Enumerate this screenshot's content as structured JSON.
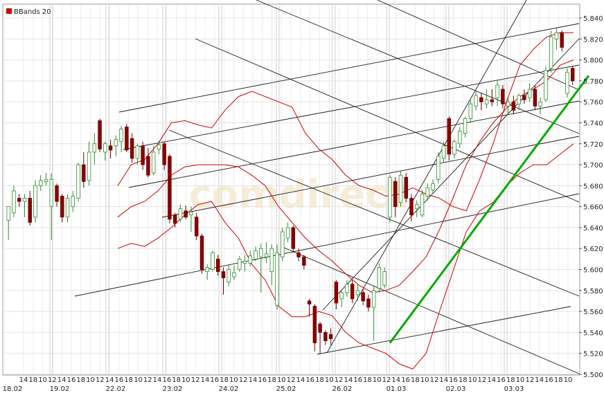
{
  "legend": {
    "label": "BBands 20",
    "swatch_color": "#cc0000"
  },
  "watermark": "comdirect",
  "chart_data": {
    "type": "candlestick",
    "indicator": "BBands 20",
    "ylim": [
      5.5,
      5.84
    ],
    "y_tick_labels": [
      "5.840",
      "5.820",
      "5.800",
      "5.780",
      "5.760",
      "5.740",
      "5.720",
      "5.700",
      "5.680",
      "5.660",
      "5.640",
      "5.620",
      "5.600",
      "5.580",
      "5.560",
      "5.540",
      "5.520",
      "5.500"
    ],
    "x_hour_labels": [
      "14",
      "18",
      "10",
      "12",
      "14",
      "16",
      "18",
      "10",
      "12",
      "14",
      "16",
      "18",
      "10",
      "12",
      "14",
      "16",
      "18",
      "10",
      "12",
      "14",
      "16",
      "18",
      "10",
      "12",
      "14",
      "16",
      "18",
      "10",
      "12",
      "14",
      "16",
      "18",
      "10",
      "12",
      "14",
      "16",
      "18",
      "10",
      "12",
      "14",
      "16",
      "18",
      "10",
      "12",
      "14",
      "16",
      "18",
      "10",
      "12",
      "14",
      "16",
      "18",
      "10",
      "12",
      "14",
      "16",
      "18",
      "10"
    ],
    "x_date_labels": [
      "18.02",
      "19.02",
      "22.02",
      "23.02",
      "24.02",
      "25.02",
      "26.02",
      "01.03",
      "02.03",
      "03.03"
    ],
    "grid": true,
    "colors": {
      "up": "#00aa00",
      "down": "#8b0000",
      "bands": "#cc0000",
      "trend": "#00aa00",
      "lines": "#000000"
    },
    "candles": [
      {
        "o": 5.647,
        "h": 5.66,
        "l": 5.628,
        "c": 5.66
      },
      {
        "o": 5.654,
        "h": 5.68,
        "l": 5.65,
        "c": 5.675
      },
      {
        "o": 5.668,
        "h": 5.672,
        "l": 5.66,
        "c": 5.665
      },
      {
        "o": 5.665,
        "h": 5.672,
        "l": 5.65,
        "c": 5.668
      },
      {
        "o": 5.668,
        "h": 5.675,
        "l": 5.642,
        "c": 5.645
      },
      {
        "o": 5.65,
        "h": 5.685,
        "l": 5.645,
        "c": 5.68
      },
      {
        "o": 5.68,
        "h": 5.69,
        "l": 5.675,
        "c": 5.685
      },
      {
        "o": 5.684,
        "h": 5.692,
        "l": 5.68,
        "c": 5.686
      },
      {
        "o": 5.66,
        "h": 5.692,
        "l": 5.628,
        "c": 5.686
      },
      {
        "o": 5.68,
        "h": 5.682,
        "l": 5.66,
        "c": 5.665
      },
      {
        "o": 5.67,
        "h": 5.672,
        "l": 5.645,
        "c": 5.65
      },
      {
        "o": 5.65,
        "h": 5.672,
        "l": 5.645,
        "c": 5.668
      },
      {
        "o": 5.66,
        "h": 5.675,
        "l": 5.655,
        "c": 5.67
      },
      {
        "o": 5.668,
        "h": 5.702,
        "l": 5.665,
        "c": 5.7
      },
      {
        "o": 5.7,
        "h": 5.712,
        "l": 5.678,
        "c": 5.684
      },
      {
        "o": 5.685,
        "h": 5.722,
        "l": 5.68,
        "c": 5.712
      },
      {
        "o": 5.712,
        "h": 5.73,
        "l": 5.7,
        "c": 5.72
      },
      {
        "o": 5.742,
        "h": 5.744,
        "l": 5.712,
        "c": 5.715
      },
      {
        "o": 5.712,
        "h": 5.722,
        "l": 5.704,
        "c": 5.72
      },
      {
        "o": 5.718,
        "h": 5.724,
        "l": 5.706,
        "c": 5.714
      },
      {
        "o": 5.718,
        "h": 5.728,
        "l": 5.708,
        "c": 5.724
      },
      {
        "o": 5.722,
        "h": 5.737,
        "l": 5.712,
        "c": 5.734
      },
      {
        "o": 5.736,
        "h": 5.739,
        "l": 5.712,
        "c": 5.714
      },
      {
        "o": 5.725,
        "h": 5.73,
        "l": 5.702,
        "c": 5.706
      },
      {
        "o": 5.706,
        "h": 5.72,
        "l": 5.7,
        "c": 5.718
      },
      {
        "o": 5.718,
        "h": 5.722,
        "l": 5.695,
        "c": 5.7
      },
      {
        "o": 5.708,
        "h": 5.716,
        "l": 5.688,
        "c": 5.69
      },
      {
        "o": 5.692,
        "h": 5.718,
        "l": 5.69,
        "c": 5.712
      },
      {
        "o": 5.715,
        "h": 5.723,
        "l": 5.71,
        "c": 5.719
      },
      {
        "o": 5.72,
        "h": 5.722,
        "l": 5.695,
        "c": 5.7
      },
      {
        "o": 5.708,
        "h": 5.71,
        "l": 5.644,
        "c": 5.648
      },
      {
        "o": 5.652,
        "h": 5.654,
        "l": 5.64,
        "c": 5.644
      },
      {
        "o": 5.648,
        "h": 5.662,
        "l": 5.645,
        "c": 5.658
      },
      {
        "o": 5.656,
        "h": 5.661,
        "l": 5.648,
        "c": 5.65
      },
      {
        "o": 5.652,
        "h": 5.66,
        "l": 5.636,
        "c": 5.655
      },
      {
        "o": 5.65,
        "h": 5.654,
        "l": 5.628,
        "c": 5.632
      },
      {
        "o": 5.632,
        "h": 5.634,
        "l": 5.596,
        "c": 5.6
      },
      {
        "o": 5.598,
        "h": 5.605,
        "l": 5.59,
        "c": 5.602
      },
      {
        "o": 5.6,
        "h": 5.618,
        "l": 5.598,
        "c": 5.616
      },
      {
        "o": 5.61,
        "h": 5.614,
        "l": 5.594,
        "c": 5.598
      },
      {
        "o": 5.598,
        "h": 5.602,
        "l": 5.576,
        "c": 5.592
      },
      {
        "o": 5.588,
        "h": 5.604,
        "l": 5.584,
        "c": 5.6
      },
      {
        "o": 5.593,
        "h": 5.604,
        "l": 5.59,
        "c": 5.597
      },
      {
        "o": 5.6,
        "h": 5.613,
        "l": 5.598,
        "c": 5.61
      },
      {
        "o": 5.606,
        "h": 5.614,
        "l": 5.598,
        "c": 5.608
      },
      {
        "o": 5.606,
        "h": 5.618,
        "l": 5.603,
        "c": 5.613
      },
      {
        "o": 5.61,
        "h": 5.622,
        "l": 5.608,
        "c": 5.618
      },
      {
        "o": 5.612,
        "h": 5.625,
        "l": 5.578,
        "c": 5.62
      },
      {
        "o": 5.612,
        "h": 5.626,
        "l": 5.606,
        "c": 5.615
      },
      {
        "o": 5.598,
        "h": 5.624,
        "l": 5.585,
        "c": 5.62
      },
      {
        "o": 5.566,
        "h": 5.624,
        "l": 5.562,
        "c": 5.616
      },
      {
        "o": 5.612,
        "h": 5.64,
        "l": 5.608,
        "c": 5.636
      },
      {
        "o": 5.63,
        "h": 5.645,
        "l": 5.626,
        "c": 5.64
      },
      {
        "o": 5.64,
        "h": 5.642,
        "l": 5.616,
        "c": 5.62
      },
      {
        "o": 5.616,
        "h": 5.62,
        "l": 5.608,
        "c": 5.612
      },
      {
        "o": 5.612,
        "h": 5.614,
        "l": 5.6,
        "c": 5.604
      },
      {
        "o": 5.57,
        "h": 5.572,
        "l": 5.555,
        "c": 5.567
      },
      {
        "o": 5.565,
        "h": 5.567,
        "l": 5.522,
        "c": 5.53
      },
      {
        "o": 5.548,
        "h": 5.55,
        "l": 5.52,
        "c": 5.54
      },
      {
        "o": 5.54,
        "h": 5.542,
        "l": 5.528,
        "c": 5.532
      },
      {
        "o": 5.538,
        "h": 5.544,
        "l": 5.528,
        "c": 5.534
      },
      {
        "o": 5.588,
        "h": 5.59,
        "l": 5.562,
        "c": 5.568
      },
      {
        "o": 5.572,
        "h": 5.58,
        "l": 5.564,
        "c": 5.578
      },
      {
        "o": 5.578,
        "h": 5.59,
        "l": 5.574,
        "c": 5.586
      },
      {
        "o": 5.586,
        "h": 5.59,
        "l": 5.568,
        "c": 5.572
      },
      {
        "o": 5.576,
        "h": 5.586,
        "l": 5.57,
        "c": 5.58
      },
      {
        "o": 5.578,
        "h": 5.582,
        "l": 5.566,
        "c": 5.57
      },
      {
        "o": 5.572,
        "h": 5.576,
        "l": 5.56,
        "c": 5.564
      },
      {
        "o": 5.564,
        "h": 5.584,
        "l": 5.532,
        "c": 5.58
      },
      {
        "o": 5.582,
        "h": 5.606,
        "l": 5.578,
        "c": 5.602
      },
      {
        "o": 5.585,
        "h": 5.602,
        "l": 5.582,
        "c": 5.598
      },
      {
        "o": 5.65,
        "h": 5.69,
        "l": 5.645,
        "c": 5.688
      },
      {
        "o": 5.684,
        "h": 5.688,
        "l": 5.65,
        "c": 5.66
      },
      {
        "o": 5.664,
        "h": 5.694,
        "l": 5.66,
        "c": 5.69
      },
      {
        "o": 5.688,
        "h": 5.692,
        "l": 5.664,
        "c": 5.668
      },
      {
        "o": 5.668,
        "h": 5.672,
        "l": 5.646,
        "c": 5.652
      },
      {
        "o": 5.658,
        "h": 5.666,
        "l": 5.65,
        "c": 5.662
      },
      {
        "o": 5.652,
        "h": 5.676,
        "l": 5.65,
        "c": 5.672
      },
      {
        "o": 5.67,
        "h": 5.682,
        "l": 5.666,
        "c": 5.678
      },
      {
        "o": 5.676,
        "h": 5.686,
        "l": 5.672,
        "c": 5.682
      },
      {
        "o": 5.686,
        "h": 5.712,
        "l": 5.682,
        "c": 5.708
      },
      {
        "o": 5.706,
        "h": 5.722,
        "l": 5.702,
        "c": 5.718
      },
      {
        "o": 5.744,
        "h": 5.746,
        "l": 5.704,
        "c": 5.71
      },
      {
        "o": 5.71,
        "h": 5.724,
        "l": 5.706,
        "c": 5.722
      },
      {
        "o": 5.72,
        "h": 5.736,
        "l": 5.716,
        "c": 5.732
      },
      {
        "o": 5.73,
        "h": 5.746,
        "l": 5.726,
        "c": 5.744
      },
      {
        "o": 5.744,
        "h": 5.762,
        "l": 5.74,
        "c": 5.758
      },
      {
        "o": 5.756,
        "h": 5.77,
        "l": 5.752,
        "c": 5.766
      },
      {
        "o": 5.764,
        "h": 5.768,
        "l": 5.752,
        "c": 5.76
      },
      {
        "o": 5.758,
        "h": 5.772,
        "l": 5.754,
        "c": 5.762
      },
      {
        "o": 5.762,
        "h": 5.772,
        "l": 5.756,
        "c": 5.76
      },
      {
        "o": 5.764,
        "h": 5.78,
        "l": 5.756,
        "c": 5.776
      },
      {
        "o": 5.772,
        "h": 5.776,
        "l": 5.754,
        "c": 5.758
      },
      {
        "o": 5.756,
        "h": 5.764,
        "l": 5.748,
        "c": 5.76
      },
      {
        "o": 5.76,
        "h": 5.766,
        "l": 5.748,
        "c": 5.752
      },
      {
        "o": 5.758,
        "h": 5.768,
        "l": 5.752,
        "c": 5.766
      },
      {
        "o": 5.766,
        "h": 5.772,
        "l": 5.758,
        "c": 5.762
      },
      {
        "o": 5.764,
        "h": 5.778,
        "l": 5.76,
        "c": 5.772
      },
      {
        "o": 5.772,
        "h": 5.776,
        "l": 5.752,
        "c": 5.756
      },
      {
        "o": 5.756,
        "h": 5.764,
        "l": 5.748,
        "c": 5.76
      },
      {
        "o": 5.762,
        "h": 5.794,
        "l": 5.76,
        "c": 5.79
      },
      {
        "o": 5.792,
        "h": 5.828,
        "l": 5.788,
        "c": 5.822
      },
      {
        "o": 5.82,
        "h": 5.83,
        "l": 5.81,
        "c": 5.826
      },
      {
        "o": 5.826,
        "h": 5.828,
        "l": 5.808,
        "c": 5.812
      },
      {
        "o": 5.768,
        "h": 5.792,
        "l": 5.764,
        "c": 5.788
      },
      {
        "o": 5.792,
        "h": 5.794,
        "l": 5.776,
        "c": 5.78
      }
    ],
    "bands": {
      "upper": [
        5.68,
        5.7,
        5.705,
        5.72,
        5.74,
        5.742,
        5.738,
        5.735,
        5.752,
        5.765,
        5.77,
        5.765,
        5.76,
        5.755,
        5.73,
        5.715,
        5.705,
        5.69,
        5.68,
        5.676,
        5.67,
        5.672,
        5.678,
        5.672,
        5.668,
        5.66,
        5.656,
        5.686,
        5.72,
        5.76,
        5.795,
        5.81,
        5.822,
        5.826,
        5.826
      ],
      "middle": [
        5.65,
        5.66,
        5.665,
        5.675,
        5.69,
        5.698,
        5.7,
        5.7,
        5.7,
        5.698,
        5.69,
        5.68,
        5.66,
        5.645,
        5.63,
        5.618,
        5.608,
        5.596,
        5.585,
        5.578,
        5.58,
        5.585,
        5.598,
        5.612,
        5.638,
        5.668,
        5.7,
        5.722,
        5.74,
        5.754,
        5.765,
        5.772,
        5.78,
        5.795,
        5.8
      ],
      "lower": [
        5.62,
        5.625,
        5.622,
        5.63,
        5.64,
        5.652,
        5.662,
        5.665,
        5.645,
        5.63,
        5.605,
        5.59,
        5.565,
        5.555,
        5.555,
        5.56,
        5.556,
        5.54,
        5.53,
        5.525,
        5.52,
        5.51,
        5.505,
        5.52,
        5.56,
        5.598,
        5.636,
        5.656,
        5.664,
        5.68,
        5.692,
        5.7,
        5.7,
        5.71,
        5.72
      ]
    },
    "trendline": {
      "from": {
        "candle": 71,
        "y": 5.53
      },
      "to": {
        "candle": 108,
        "y": 5.785
      }
    }
  }
}
